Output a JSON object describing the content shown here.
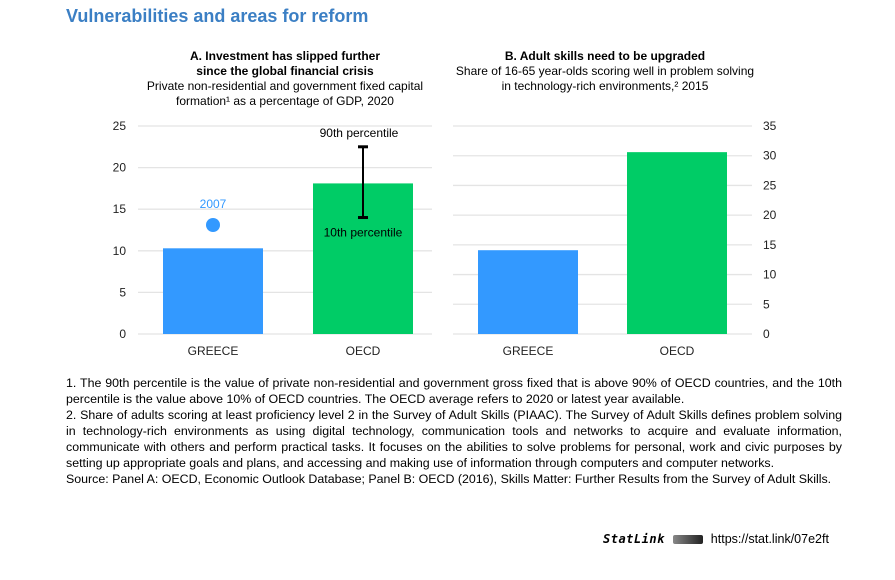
{
  "title": "Vulnerabilities and areas for reform",
  "chart_data": [
    {
      "type": "bar",
      "title": "A. Investment has slipped further since the global financial crisis",
      "title_lines": [
        "A. Investment has slipped further",
        "since the global financial crisis"
      ],
      "subtitle_lines": [
        "Private non-residential and government fixed capital",
        "formation¹ as a percentage of GDP, 2020"
      ],
      "categories": [
        "GREECE",
        "OECD"
      ],
      "values": [
        10.3,
        18.1
      ],
      "colors": [
        "#3399ff",
        "#00cc66"
      ],
      "ylim": [
        0,
        25
      ],
      "yticks": [
        0,
        5,
        10,
        15,
        20,
        25
      ],
      "yaxis": "left",
      "marker": {
        "category": "GREECE",
        "value": 13.1,
        "label": "2007",
        "color": "#3399ff"
      },
      "range": {
        "category": "OECD",
        "high": 22.5,
        "low": 14.0,
        "high_label": "90th percentile",
        "low_label": "10th percentile"
      }
    },
    {
      "type": "bar",
      "title": "B. Adult skills need to be upgraded",
      "title_lines": [
        "B. Adult skills need to be upgraded"
      ],
      "subtitle_lines": [
        "Share of 16-65 year-olds scoring well in problem solving",
        "in technology-rich environments,² 2015"
      ],
      "categories": [
        "GREECE",
        "OECD"
      ],
      "values": [
        14.1,
        30.6
      ],
      "colors": [
        "#3399ff",
        "#00cc66"
      ],
      "ylim": [
        0,
        35
      ],
      "yticks": [
        0,
        5,
        10,
        15,
        20,
        25,
        30,
        35
      ],
      "yaxis": "right"
    }
  ],
  "notes": [
    "1. The 90th percentile is the value of private non-residential and government gross fixed that is above 90% of OECD countries, and the 10th percentile is the value above 10% of OECD countries. The OECD average refers to 2020 or latest year available.",
    "2. Share of adults scoring at least proficiency level 2 in the Survey of Adult Skills (PIAAC). The Survey of Adult Skills defines problem solving in technology-rich environments as using digital technology, communication tools and networks to acquire and evaluate information, communicate with others and perform practical tasks. It focuses on the abilities to solve problems for personal, work and civic purposes by setting up appropriate goals and plans, and accessing and making use of information through computers and computer networks.",
    "Source: Panel A: OECD, Economic Outlook Database; Panel B: OECD (2016), Skills Matter: Further Results from the Survey of Adult Skills."
  ],
  "statlink": {
    "logo": "StatLink",
    "url": "https://stat.link/07e2ft"
  }
}
